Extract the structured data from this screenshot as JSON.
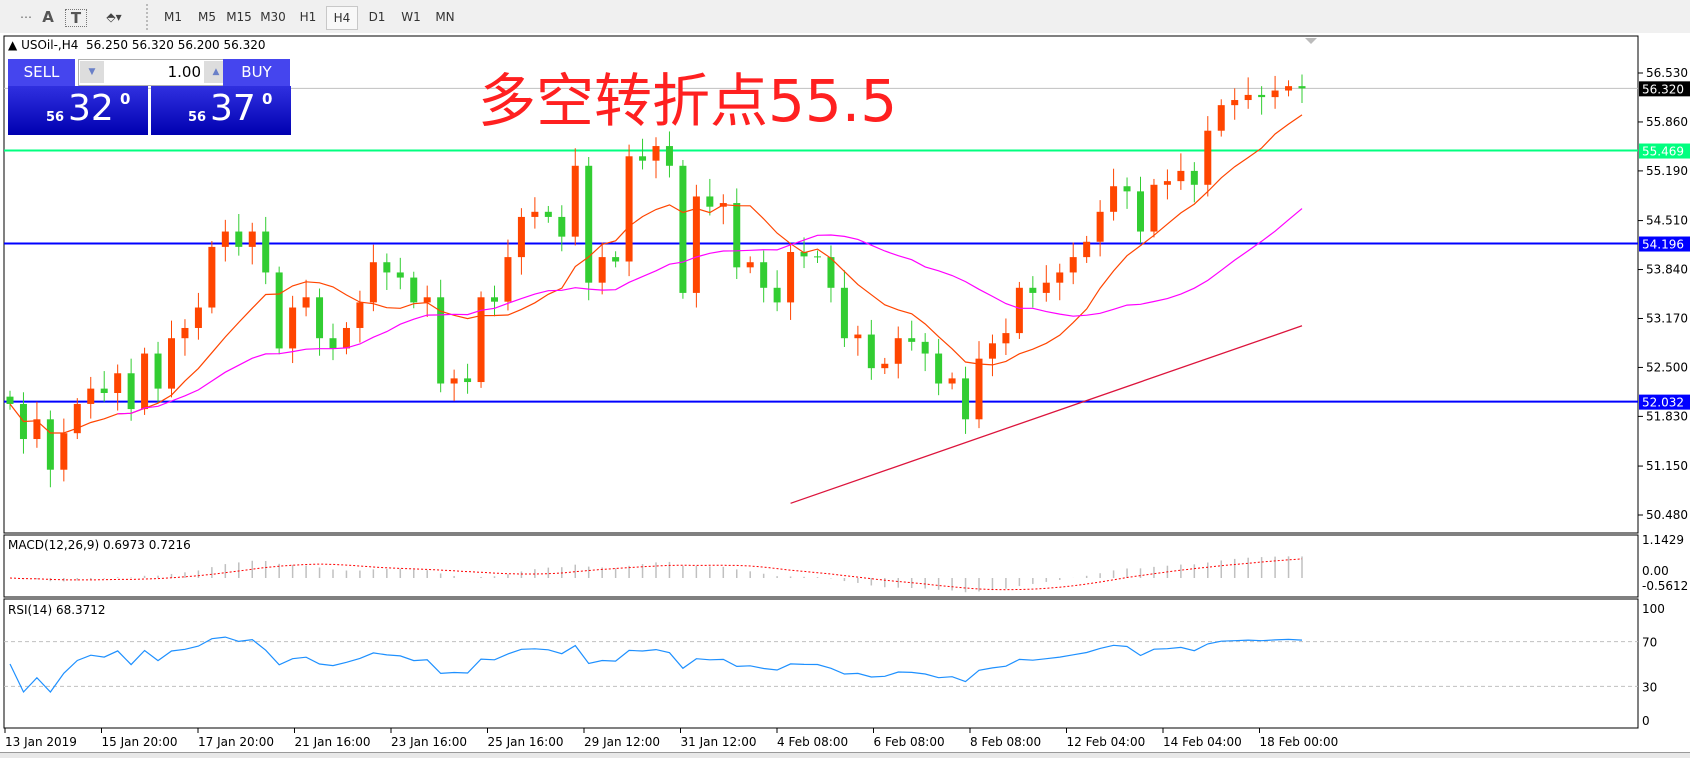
{
  "toolbar": {
    "tools": [
      {
        "name": "fibonacci-tool-icon",
        "glyph": "⋯"
      },
      {
        "name": "text-tool-icon",
        "glyph": "A"
      },
      {
        "name": "text-label-tool-icon",
        "glyph": "T"
      },
      {
        "name": "arrows-tool-icon",
        "glyph": "⬘▾"
      }
    ],
    "timeframes": [
      "M1",
      "M5",
      "M15",
      "M30",
      "H1",
      "H4",
      "D1",
      "W1",
      "MN"
    ],
    "active_timeframe": "H4"
  },
  "header": {
    "symbol": "USOil-,H4",
    "open": "56.250",
    "high": "56.320",
    "low": "56.200",
    "close": "56.320"
  },
  "trade_panel": {
    "sell_label": "SELL",
    "buy_label": "BUY",
    "lot": "1.00",
    "sell_big": "56",
    "sell_main": "32",
    "sell_sup": "0",
    "buy_big": "56",
    "buy_main": "37",
    "buy_sup": "0"
  },
  "annotation": {
    "text": "多空转折点55.5",
    "color": "#ff2020"
  },
  "colors": {
    "bull": "#ff4500",
    "bear": "#32cd32",
    "ma_fast": "#ff4500",
    "ma_mid": "#ff00ff",
    "ma_long": "#dc143c",
    "support": "#0000ff",
    "pivot": "#00ff7f",
    "rsi": "#1e90ff",
    "macd_hist": "#c0c0c0",
    "macd_signal": "#ff0000"
  },
  "chart_data": {
    "type": "candlestick",
    "price_ticks": [
      "56.530",
      "55.860",
      "55.190",
      "54.510",
      "53.840",
      "53.170",
      "52.500",
      "51.830",
      "51.150",
      "50.480"
    ],
    "price_range": [
      50.4,
      56.8
    ],
    "current_price": "56.320",
    "levels": [
      {
        "value": "55.469",
        "kind": "pivot"
      },
      {
        "value": "54.196",
        "kind": "support"
      },
      {
        "value": "52.032",
        "kind": "support"
      }
    ],
    "closes": [
      52.0,
      51.52,
      51.79,
      51.1,
      51.6,
      52.0,
      52.21,
      52.15,
      52.42,
      51.93,
      52.69,
      52.21,
      52.9,
      53.04,
      53.32,
      54.15,
      54.36,
      54.15,
      54.36,
      53.8,
      52.76,
      53.32,
      53.46,
      52.9,
      52.76,
      53.04,
      53.39,
      53.94,
      53.8,
      53.73,
      53.39,
      53.46,
      52.28,
      52.35,
      52.3,
      53.46,
      53.4,
      54.01,
      54.56,
      54.63,
      54.56,
      54.29,
      55.26,
      53.66,
      54.01,
      53.95,
      55.39,
      55.33,
      55.53,
      55.26,
      53.52,
      54.84,
      54.7,
      54.75,
      53.87,
      53.94,
      53.59,
      53.39,
      54.08,
      54.02,
      54.01,
      53.59,
      52.9,
      52.95,
      52.49,
      52.55,
      52.9,
      52.85,
      52.69,
      52.28,
      52.35,
      51.79,
      52.62,
      52.83,
      52.97,
      53.59,
      53.52,
      53.66,
      53.8,
      54.01,
      54.22,
      54.63,
      54.98,
      54.91,
      54.36,
      55.0,
      55.05,
      55.19,
      55.0,
      55.74,
      56.09,
      56.16,
      56.23,
      56.2,
      56.29,
      56.35,
      56.32
    ],
    "long_ma": {
      "start_index": 58,
      "start_value": 50.64,
      "end_value": 53.07
    },
    "x_ticks": [
      "13 Jan 2019",
      "15 Jan 20:00",
      "17 Jan 20:00",
      "21 Jan 16:00",
      "23 Jan 16:00",
      "25 Jan 16:00",
      "29 Jan 12:00",
      "31 Jan 12:00",
      "4 Feb 08:00",
      "6 Feb 08:00",
      "8 Feb 08:00",
      "12 Feb 04:00",
      "14 Feb 04:00",
      "18 Feb 00:00"
    ]
  },
  "macd": {
    "label": "MACD(12,26,9) 0.6973 0.7216",
    "ticks": [
      "1.1429",
      "0.00",
      "-0.5612"
    ]
  },
  "rsi": {
    "label": "RSI(14) 68.3712",
    "ticks": [
      "100",
      "70",
      "30",
      "0"
    ],
    "levels": [
      70,
      30
    ]
  }
}
